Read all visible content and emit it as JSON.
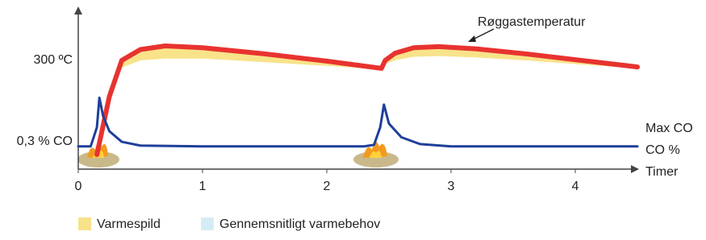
{
  "chart_data": {
    "type": "line",
    "xlim": [
      0,
      4.5
    ],
    "xticks": [
      0,
      1,
      2,
      3,
      4
    ],
    "xlabel": "Timer",
    "ylim": [
      0,
      440
    ],
    "yticks": [
      {
        "value": 300,
        "label": "300 ºC"
      }
    ],
    "y2lim": [
      0,
      2.1
    ],
    "y2ticks": [
      {
        "value": 0.3,
        "label": "0,3 % CO"
      }
    ],
    "grid": false,
    "series": [
      {
        "name": "Røggastemperatur",
        "color": "#e8332f",
        "x": [
          0.15,
          0.25,
          0.35,
          0.5,
          0.7,
          1.0,
          1.5,
          2.0,
          2.44,
          2.47,
          2.55,
          2.7,
          2.9,
          3.2,
          3.6,
          4.0,
          4.5
        ],
        "values": [
          40,
          200,
          300,
          330,
          340,
          335,
          318,
          298,
          278,
          300,
          320,
          335,
          338,
          332,
          318,
          302,
          282
        ]
      },
      {
        "name": "Varmespild",
        "color": "#f8e38a",
        "x": [
          0.15,
          0.25,
          0.35,
          0.5,
          0.7,
          1.0,
          1.5,
          2.0,
          2.44,
          2.47,
          2.55,
          2.7,
          2.9,
          3.2,
          3.6,
          4.0,
          4.5
        ],
        "values": [
          40,
          190,
          280,
          300,
          305,
          305,
          295,
          285,
          275,
          290,
          300,
          310,
          312,
          308,
          300,
          290,
          278
        ]
      },
      {
        "name": "CO %",
        "color": "#1f3f9a",
        "axis": "y2",
        "x": [
          0,
          0.1,
          0.15,
          0.17,
          0.2,
          0.25,
          0.35,
          0.5,
          1,
          2,
          2.3,
          2.38,
          2.43,
          2.46,
          2.5,
          2.6,
          2.75,
          3,
          4,
          4.5
        ],
        "values": [
          0.3,
          0.3,
          0.55,
          0.94,
          0.7,
          0.5,
          0.36,
          0.31,
          0.3,
          0.3,
          0.3,
          0.32,
          0.55,
          0.85,
          0.6,
          0.42,
          0.33,
          0.3,
          0.3,
          0.3
        ]
      }
    ],
    "annotations": [
      "Max CO"
    ],
    "legend_extra": {
      "name": "Gennemsnitligt varmebehov",
      "color": "#d6ecf5"
    }
  }
}
